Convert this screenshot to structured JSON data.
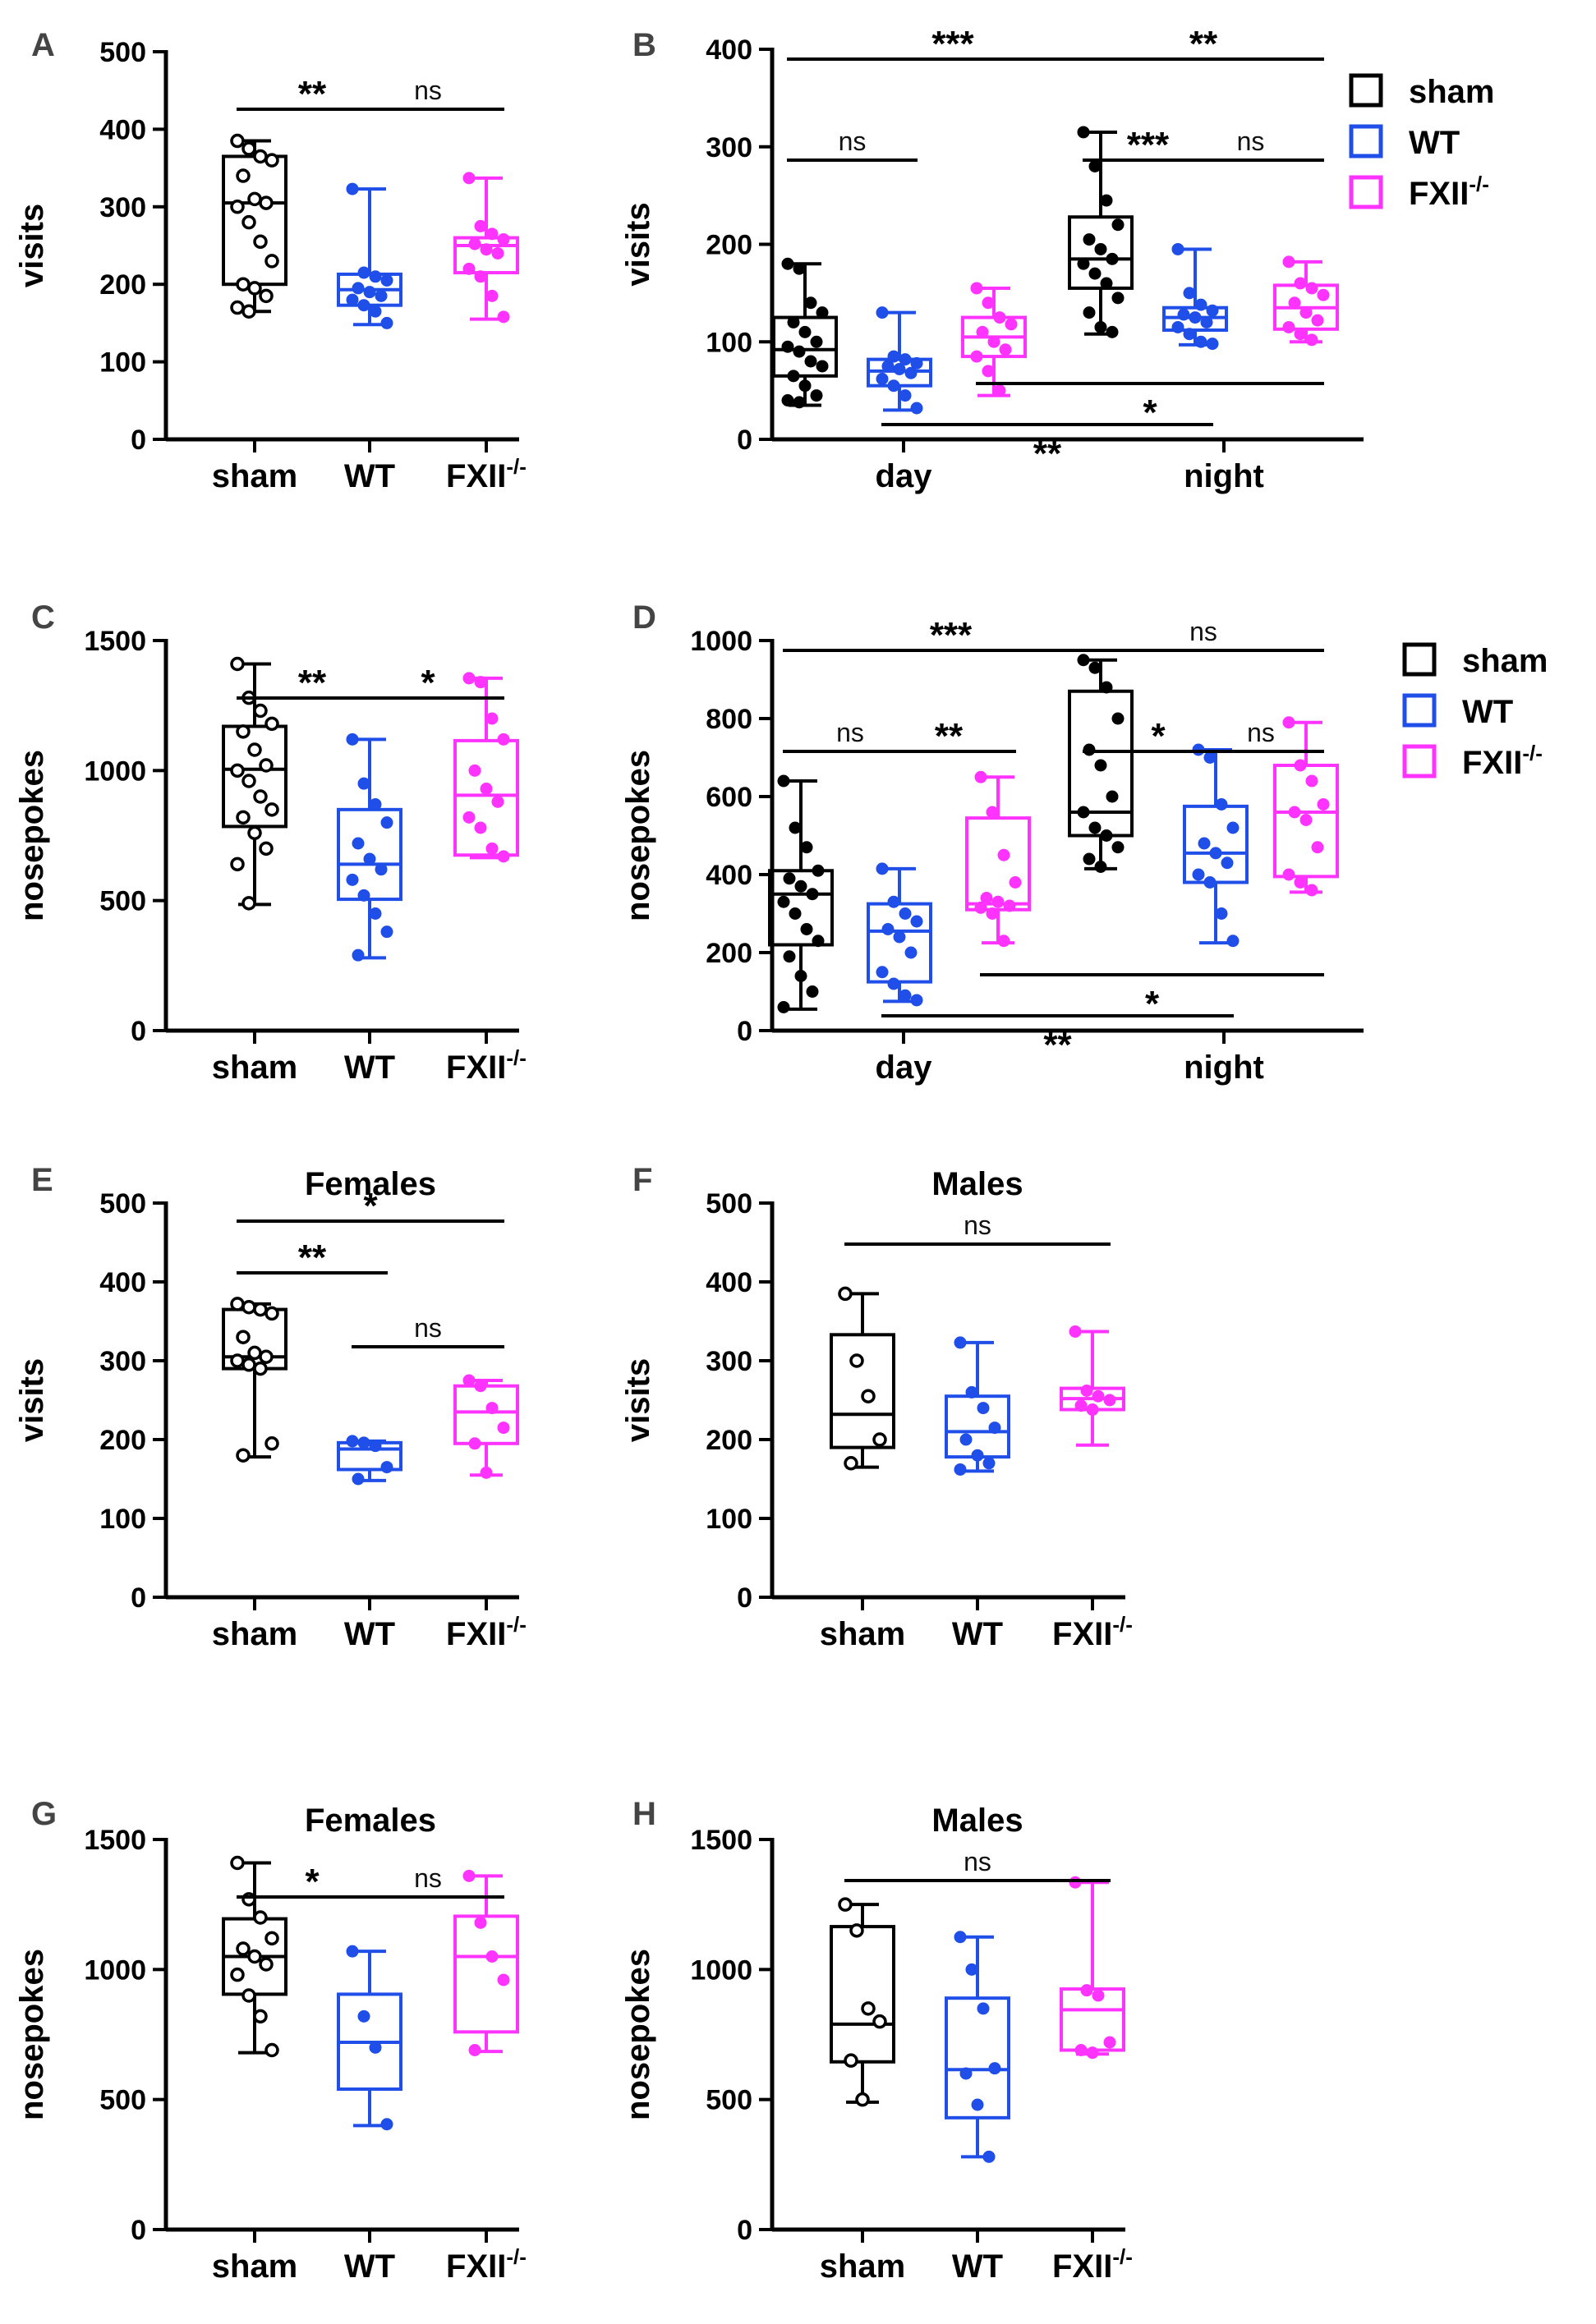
{
  "figure": {
    "categories": [
      "sham",
      "WT",
      "FXII"
    ],
    "category_suffix": "-/-",
    "periods": [
      "day",
      "night"
    ],
    "colors": {
      "sham": "#000000",
      "WT": "#1f4ee8",
      "FXII": "#ff33ff"
    },
    "legend": {
      "entries": [
        "sham",
        "WT",
        "FXII"
      ],
      "suffix": "-/-"
    }
  },
  "chart_data": [
    {
      "id": "A",
      "type": "box",
      "title": "",
      "ylabel": "visits",
      "ylim": [
        0,
        500
      ],
      "yticks": [
        0,
        100,
        200,
        300,
        400,
        500
      ],
      "categories": [
        "sham",
        "WT",
        "FXII-/-"
      ],
      "groups": [
        {
          "name": "sham",
          "color": "#000000",
          "whisker_low": 165,
          "q1": 200,
          "median": 305,
          "q3": 365,
          "whisker_high": 385,
          "hollow": true,
          "points": [
            385,
            375,
            365,
            360,
            340,
            310,
            305,
            300,
            280,
            255,
            230,
            200,
            195,
            185,
            170,
            165
          ]
        },
        {
          "name": "WT",
          "color": "#1f4ee8",
          "whisker_low": 148,
          "q1": 173,
          "median": 193,
          "q3": 213,
          "whisker_high": 323,
          "hollow": false,
          "points": [
            323,
            215,
            210,
            205,
            195,
            190,
            185,
            180,
            173,
            165,
            150
          ]
        },
        {
          "name": "FXII-/-",
          "color": "#ff33ff",
          "whisker_low": 155,
          "q1": 215,
          "median": 250,
          "q3": 260,
          "whisker_high": 337,
          "hollow": false,
          "points": [
            337,
            275,
            265,
            258,
            252,
            245,
            240,
            220,
            210,
            185,
            158
          ]
        }
      ],
      "comparisons": [
        {
          "from": 0,
          "to": 1,
          "label": "**"
        },
        {
          "from": 1,
          "to": 2,
          "label": "ns"
        }
      ]
    },
    {
      "id": "B",
      "type": "box",
      "title": "",
      "ylabel": "visits",
      "ylim": [
        0,
        400
      ],
      "yticks": [
        0,
        100,
        200,
        300,
        400
      ],
      "x": [
        "day",
        "night"
      ],
      "groups": [
        {
          "name": "sham",
          "period": "day",
          "color": "#000000",
          "whisker_low": 35,
          "q1": 65,
          "median": 92,
          "q3": 125,
          "whisker_high": 180,
          "hollow": false,
          "points": [
            180,
            175,
            140,
            130,
            120,
            110,
            100,
            95,
            90,
            80,
            75,
            65,
            55,
            45,
            40,
            38
          ]
        },
        {
          "name": "WT",
          "period": "day",
          "color": "#1f4ee8",
          "whisker_low": 30,
          "q1": 55,
          "median": 70,
          "q3": 82,
          "whisker_high": 130,
          "hollow": false,
          "points": [
            130,
            85,
            82,
            78,
            75,
            72,
            68,
            62,
            55,
            45,
            32
          ]
        },
        {
          "name": "FXII-/-",
          "period": "day",
          "color": "#ff33ff",
          "whisker_low": 45,
          "q1": 85,
          "median": 105,
          "q3": 125,
          "whisker_high": 155,
          "hollow": false,
          "points": [
            155,
            140,
            125,
            118,
            110,
            100,
            92,
            85,
            70,
            50
          ]
        },
        {
          "name": "sham",
          "period": "night",
          "color": "#000000",
          "whisker_low": 108,
          "q1": 155,
          "median": 185,
          "q3": 228,
          "whisker_high": 315,
          "hollow": false,
          "points": [
            315,
            280,
            245,
            220,
            205,
            195,
            185,
            180,
            170,
            160,
            145,
            130,
            115,
            110
          ]
        },
        {
          "name": "WT",
          "period": "night",
          "color": "#1f4ee8",
          "whisker_low": 97,
          "q1": 112,
          "median": 125,
          "q3": 135,
          "whisker_high": 195,
          "hollow": false,
          "points": [
            195,
            150,
            138,
            132,
            128,
            125,
            120,
            115,
            108,
            100,
            98
          ]
        },
        {
          "name": "FXII-/-",
          "period": "night",
          "color": "#ff33ff",
          "whisker_low": 100,
          "q1": 113,
          "median": 135,
          "q3": 158,
          "whisker_high": 182,
          "hollow": false,
          "points": [
            182,
            160,
            155,
            148,
            140,
            130,
            122,
            115,
            108,
            102
          ]
        }
      ],
      "comparisons": [
        {
          "from": 0,
          "to": 3,
          "label": "***",
          "level": "top"
        },
        {
          "from": 3,
          "to": 5,
          "label": "**",
          "level": "top"
        },
        {
          "from": 0,
          "to": 1,
          "label": "ns",
          "level": "mid"
        },
        {
          "from": 3,
          "to": 4,
          "label": "***",
          "level": "mid"
        },
        {
          "from": 4,
          "to": 5,
          "label": "ns",
          "level": "mid"
        },
        {
          "from": 2,
          "to": 5,
          "label": "*",
          "level": "below"
        },
        {
          "from": 1,
          "to": 4,
          "label": "**",
          "level": "below"
        }
      ]
    },
    {
      "id": "C",
      "type": "box",
      "title": "",
      "ylabel": "nosepokes",
      "ylim": [
        0,
        1500
      ],
      "yticks": [
        0,
        500,
        1000,
        1500
      ],
      "categories": [
        "sham",
        "WT",
        "FXII-/-"
      ],
      "groups": [
        {
          "name": "sham",
          "color": "#000000",
          "whisker_low": 485,
          "q1": 785,
          "median": 1005,
          "q3": 1170,
          "whisker_high": 1410,
          "hollow": true,
          "points": [
            1410,
            1280,
            1230,
            1180,
            1150,
            1080,
            1020,
            1000,
            960,
            900,
            850,
            820,
            760,
            700,
            640,
            490
          ]
        },
        {
          "name": "WT",
          "color": "#1f4ee8",
          "whisker_low": 280,
          "q1": 505,
          "median": 640,
          "q3": 850,
          "whisker_high": 1120,
          "hollow": false,
          "points": [
            1120,
            950,
            870,
            800,
            720,
            660,
            620,
            580,
            520,
            450,
            380,
            290
          ]
        },
        {
          "name": "FXII-/-",
          "color": "#ff33ff",
          "whisker_low": 665,
          "q1": 675,
          "median": 905,
          "q3": 1115,
          "whisker_high": 1355,
          "hollow": false,
          "points": [
            1355,
            1340,
            1200,
            1120,
            1000,
            930,
            880,
            820,
            780,
            700,
            670
          ]
        }
      ],
      "comparisons": [
        {
          "from": 0,
          "to": 1,
          "label": "**"
        },
        {
          "from": 1,
          "to": 2,
          "label": "*"
        }
      ]
    },
    {
      "id": "D",
      "type": "box",
      "title": "",
      "ylabel": "nosepokes",
      "ylim": [
        0,
        1000
      ],
      "yticks": [
        0,
        200,
        400,
        600,
        800,
        1000
      ],
      "x": [
        "day",
        "night"
      ],
      "groups": [
        {
          "name": "sham",
          "period": "day",
          "color": "#000000",
          "whisker_low": 55,
          "q1": 220,
          "median": 350,
          "q3": 410,
          "whisker_high": 640,
          "hollow": false,
          "points": [
            640,
            520,
            470,
            410,
            390,
            370,
            350,
            330,
            300,
            260,
            230,
            190,
            140,
            100,
            60
          ]
        },
        {
          "name": "WT",
          "period": "day",
          "color": "#1f4ee8",
          "whisker_low": 75,
          "q1": 125,
          "median": 255,
          "q3": 325,
          "whisker_high": 415,
          "hollow": false,
          "points": [
            415,
            330,
            300,
            280,
            260,
            240,
            200,
            150,
            120,
            90,
            78
          ]
        },
        {
          "name": "FXII-/-",
          "period": "day",
          "color": "#ff33ff",
          "whisker_low": 225,
          "q1": 310,
          "median": 325,
          "q3": 545,
          "whisker_high": 650,
          "hollow": false,
          "points": [
            650,
            560,
            450,
            380,
            340,
            330,
            320,
            315,
            300,
            230
          ]
        },
        {
          "name": "sham",
          "period": "night",
          "color": "#000000",
          "whisker_low": 415,
          "q1": 500,
          "median": 560,
          "q3": 870,
          "whisker_high": 950,
          "hollow": false,
          "points": [
            950,
            930,
            880,
            800,
            720,
            680,
            600,
            560,
            520,
            500,
            470,
            440,
            420
          ]
        },
        {
          "name": "WT",
          "period": "night",
          "color": "#1f4ee8",
          "whisker_low": 225,
          "q1": 380,
          "median": 455,
          "q3": 575,
          "whisker_high": 720,
          "hollow": false,
          "points": [
            720,
            700,
            580,
            520,
            480,
            455,
            430,
            400,
            380,
            300,
            230
          ]
        },
        {
          "name": "FXII-/-",
          "period": "night",
          "color": "#ff33ff",
          "whisker_low": 355,
          "q1": 395,
          "median": 560,
          "q3": 680,
          "whisker_high": 790,
          "hollow": false,
          "points": [
            790,
            680,
            640,
            580,
            560,
            540,
            470,
            400,
            380,
            360
          ]
        }
      ],
      "comparisons": [
        {
          "from": 0,
          "to": 3,
          "label": "***",
          "level": "top"
        },
        {
          "from": 3,
          "to": 5,
          "label": "ns",
          "level": "top"
        },
        {
          "from": 0,
          "to": 1,
          "label": "ns",
          "level": "mid"
        },
        {
          "from": 1,
          "to": 2,
          "label": "**",
          "level": "mid"
        },
        {
          "from": 3,
          "to": 4,
          "label": "*",
          "level": "mid"
        },
        {
          "from": 4,
          "to": 5,
          "label": "ns",
          "level": "mid"
        },
        {
          "from": 2,
          "to": 5,
          "label": "*",
          "level": "below"
        },
        {
          "from": 1,
          "to": 4,
          "label": "**",
          "level": "below"
        }
      ]
    },
    {
      "id": "E",
      "type": "box",
      "title": "Females",
      "ylabel": "visits",
      "ylim": [
        0,
        500
      ],
      "yticks": [
        0,
        100,
        200,
        300,
        400,
        500
      ],
      "categories": [
        "sham",
        "WT",
        "FXII-/-"
      ],
      "groups": [
        {
          "name": "sham",
          "color": "#000000",
          "whisker_low": 178,
          "q1": 290,
          "median": 305,
          "q3": 365,
          "whisker_high": 372,
          "hollow": true,
          "points": [
            372,
            368,
            365,
            360,
            330,
            310,
            305,
            300,
            295,
            290,
            195,
            180
          ]
        },
        {
          "name": "WT",
          "color": "#1f4ee8",
          "whisker_low": 148,
          "q1": 162,
          "median": 188,
          "q3": 196,
          "whisker_high": 198,
          "hollow": false,
          "points": [
            198,
            196,
            192,
            165,
            150
          ]
        },
        {
          "name": "FXII-/-",
          "color": "#ff33ff",
          "whisker_low": 155,
          "q1": 195,
          "median": 235,
          "q3": 268,
          "whisker_high": 275,
          "hollow": false,
          "points": [
            275,
            268,
            240,
            215,
            195,
            158
          ]
        }
      ],
      "comparisons": [
        {
          "from": 0,
          "to": 2,
          "label": "*"
        },
        {
          "from": 0,
          "to": 1,
          "label": "**"
        },
        {
          "from": 1,
          "to": 2,
          "label": "ns"
        }
      ]
    },
    {
      "id": "F",
      "type": "box",
      "title": "Males",
      "ylabel": "visits",
      "ylim": [
        0,
        500
      ],
      "yticks": [
        0,
        100,
        200,
        300,
        400,
        500
      ],
      "categories": [
        "sham",
        "WT",
        "FXII-/-"
      ],
      "groups": [
        {
          "name": "sham",
          "color": "#000000",
          "whisker_low": 165,
          "q1": 190,
          "median": 232,
          "q3": 333,
          "whisker_high": 385,
          "hollow": true,
          "points": [
            385,
            300,
            255,
            200,
            170
          ]
        },
        {
          "name": "WT",
          "color": "#1f4ee8",
          "whisker_low": 160,
          "q1": 178,
          "median": 210,
          "q3": 255,
          "whisker_high": 323,
          "hollow": false,
          "points": [
            323,
            260,
            240,
            215,
            200,
            180,
            170,
            162
          ]
        },
        {
          "name": "FXII-/-",
          "color": "#ff33ff",
          "whisker_low": 193,
          "q1": 238,
          "median": 252,
          "q3": 265,
          "whisker_high": 337,
          "hollow": false,
          "points": [
            337,
            262,
            255,
            250,
            243,
            238
          ]
        }
      ],
      "comparisons": [
        {
          "from": 0,
          "to": 2,
          "label": "ns"
        }
      ]
    },
    {
      "id": "G",
      "type": "box",
      "title": "Females",
      "ylabel": "nosepokes",
      "ylim": [
        0,
        1500
      ],
      "yticks": [
        0,
        500,
        1000,
        1500
      ],
      "categories": [
        "sham",
        "WT",
        "FXII-/-"
      ],
      "groups": [
        {
          "name": "sham",
          "color": "#000000",
          "whisker_low": 680,
          "q1": 905,
          "median": 1050,
          "q3": 1195,
          "whisker_high": 1410,
          "hollow": true,
          "points": [
            1410,
            1270,
            1200,
            1120,
            1080,
            1050,
            1020,
            980,
            900,
            820,
            690
          ]
        },
        {
          "name": "WT",
          "color": "#1f4ee8",
          "whisker_low": 400,
          "q1": 540,
          "median": 720,
          "q3": 905,
          "whisker_high": 1070,
          "hollow": false,
          "points": [
            1070,
            820,
            700,
            405
          ]
        },
        {
          "name": "FXII-/-",
          "color": "#ff33ff",
          "whisker_low": 685,
          "q1": 760,
          "median": 1050,
          "q3": 1205,
          "whisker_high": 1360,
          "hollow": false,
          "points": [
            1360,
            1180,
            1050,
            960,
            690
          ]
        }
      ],
      "comparisons": [
        {
          "from": 0,
          "to": 1,
          "label": "*"
        },
        {
          "from": 1,
          "to": 2,
          "label": "ns"
        }
      ]
    },
    {
      "id": "H",
      "type": "box",
      "title": "Males",
      "ylabel": "nosepokes",
      "ylim": [
        0,
        1500
      ],
      "yticks": [
        0,
        500,
        1000,
        1500
      ],
      "categories": [
        "sham",
        "WT",
        "FXII-/-"
      ],
      "groups": [
        {
          "name": "sham",
          "color": "#000000",
          "whisker_low": 490,
          "q1": 645,
          "median": 790,
          "q3": 1165,
          "whisker_high": 1250,
          "hollow": true,
          "points": [
            1250,
            1150,
            850,
            800,
            650,
            500
          ]
        },
        {
          "name": "WT",
          "color": "#1f4ee8",
          "whisker_low": 280,
          "q1": 430,
          "median": 615,
          "q3": 890,
          "whisker_high": 1125,
          "hollow": false,
          "points": [
            1125,
            1000,
            850,
            620,
            600,
            480,
            280
          ]
        },
        {
          "name": "FXII-/-",
          "color": "#ff33ff",
          "whisker_low": 675,
          "q1": 690,
          "median": 845,
          "q3": 925,
          "whisker_high": 1335,
          "hollow": false,
          "points": [
            1335,
            920,
            900,
            720,
            690,
            680
          ]
        }
      ],
      "comparisons": [
        {
          "from": 0,
          "to": 2,
          "label": "ns"
        }
      ]
    }
  ]
}
